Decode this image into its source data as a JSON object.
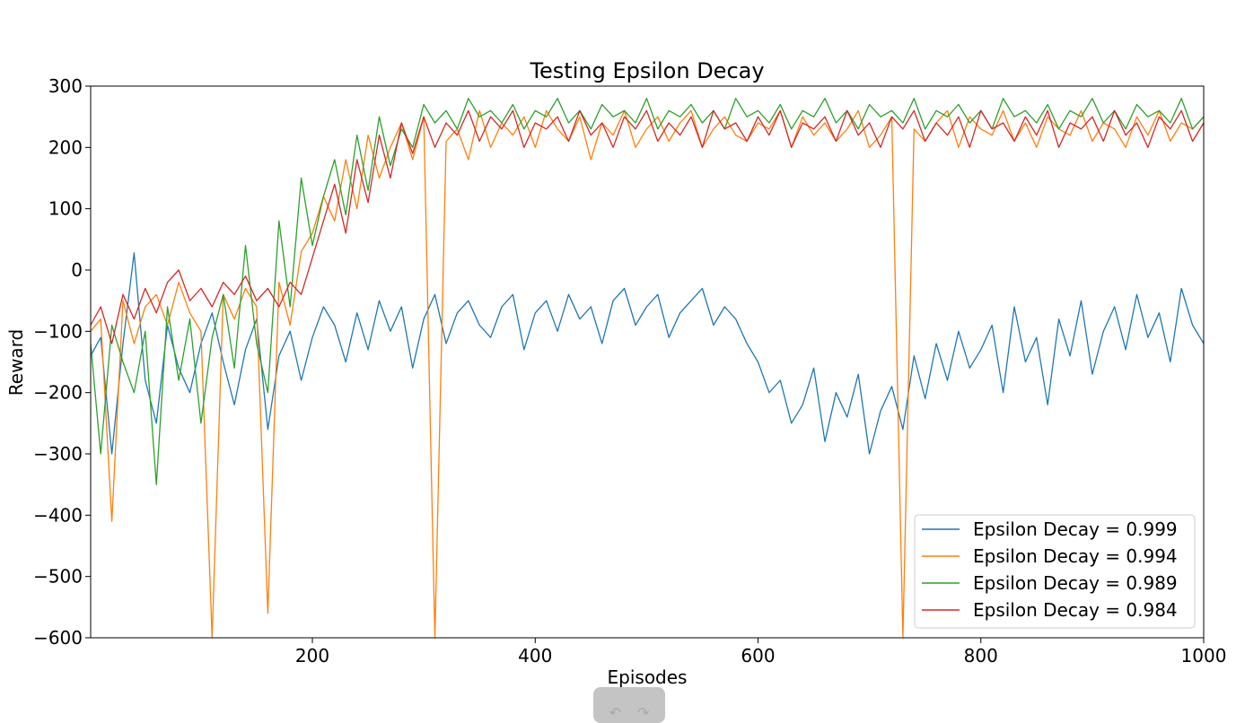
{
  "chart_data": {
    "type": "line",
    "title": "Testing Epsilon Decay",
    "xlabel": "Episodes",
    "ylabel": "Reward",
    "xlim": [
      1,
      1000
    ],
    "ylim": [
      -600,
      300
    ],
    "x_ticks": [
      200,
      400,
      600,
      800,
      1000
    ],
    "y_ticks": [
      300,
      200,
      100,
      0,
      -100,
      -200,
      -300,
      -400,
      -500,
      -600
    ],
    "y_tick_labels": [
      "300",
      "200",
      "100",
      "0",
      "−100",
      "−200",
      "−300",
      "−400",
      "−500",
      "−600"
    ],
    "grid": false,
    "legend_position": "bottom-right",
    "x": [
      1,
      10,
      20,
      30,
      40,
      50,
      60,
      70,
      80,
      90,
      100,
      110,
      120,
      130,
      140,
      150,
      160,
      170,
      180,
      190,
      200,
      210,
      220,
      230,
      240,
      250,
      260,
      270,
      280,
      290,
      300,
      310,
      320,
      330,
      340,
      350,
      360,
      370,
      380,
      390,
      400,
      410,
      420,
      430,
      440,
      450,
      460,
      470,
      480,
      490,
      500,
      510,
      520,
      530,
      540,
      550,
      560,
      570,
      580,
      590,
      600,
      610,
      620,
      630,
      640,
      650,
      660,
      670,
      680,
      690,
      700,
      710,
      720,
      730,
      740,
      750,
      760,
      770,
      780,
      790,
      800,
      810,
      820,
      830,
      840,
      850,
      860,
      870,
      880,
      890,
      900,
      910,
      920,
      930,
      940,
      950,
      960,
      970,
      980,
      990,
      1000
    ],
    "series": [
      {
        "name": "Epsilon Decay = 0.999",
        "color": "#1f77b4",
        "values": [
          -140,
          -110,
          -300,
          -120,
          28,
          -180,
          -250,
          -90,
          -160,
          -200,
          -120,
          -70,
          -150,
          -220,
          -130,
          -80,
          -260,
          -140,
          -100,
          -180,
          -110,
          -60,
          -90,
          -150,
          -70,
          -130,
          -50,
          -100,
          -60,
          -160,
          -80,
          -40,
          -120,
          -70,
          -50,
          -90,
          -110,
          -60,
          -40,
          -130,
          -70,
          -50,
          -100,
          -40,
          -80,
          -60,
          -120,
          -50,
          -30,
          -90,
          -60,
          -40,
          -110,
          -70,
          -50,
          -30,
          -90,
          -60,
          -80,
          -120,
          -150,
          -200,
          -180,
          -250,
          -220,
          -160,
          -280,
          -200,
          -240,
          -170,
          -300,
          -230,
          -190,
          -260,
          -140,
          -210,
          -120,
          -180,
          -100,
          -160,
          -130,
          -90,
          -200,
          -60,
          -150,
          -110,
          -220,
          -80,
          -140,
          -50,
          -170,
          -100,
          -60,
          -130,
          -40,
          -110,
          -70,
          -150,
          -30,
          -90,
          -120
        ]
      },
      {
        "name": "Epsilon Decay = 0.994",
        "color": "#ff7f0e",
        "values": [
          -100,
          -80,
          -410,
          -50,
          -120,
          -60,
          -40,
          -90,
          -20,
          -70,
          -100,
          -600,
          -40,
          -80,
          -30,
          -60,
          -560,
          -20,
          -90,
          30,
          60,
          120,
          80,
          180,
          100,
          220,
          150,
          200,
          240,
          180,
          250,
          -600,
          210,
          230,
          180,
          260,
          200,
          240,
          220,
          250,
          200,
          260,
          230,
          210,
          250,
          180,
          240,
          220,
          260,
          200,
          230,
          250,
          210,
          240,
          260,
          200,
          230,
          250,
          220,
          210,
          240,
          230,
          260,
          200,
          250,
          220,
          240,
          210,
          230,
          260,
          200,
          220,
          250,
          -600,
          230,
          210,
          240,
          260,
          200,
          250,
          230,
          220,
          260,
          210,
          240,
          200,
          250,
          230,
          220,
          260,
          210,
          240,
          230,
          200,
          250,
          220,
          260,
          210,
          240,
          230,
          250
        ]
      },
      {
        "name": "Epsilon Decay = 0.989",
        "color": "#2ca02c",
        "values": [
          -120,
          -300,
          -90,
          -150,
          -200,
          -100,
          -350,
          -60,
          -180,
          -80,
          -250,
          -110,
          -40,
          -160,
          40,
          -120,
          -200,
          80,
          -60,
          150,
          40,
          120,
          180,
          90,
          220,
          130,
          250,
          170,
          230,
          200,
          270,
          240,
          260,
          230,
          280,
          250,
          260,
          240,
          270,
          230,
          260,
          250,
          280,
          240,
          260,
          230,
          270,
          250,
          260,
          240,
          280,
          230,
          260,
          250,
          270,
          240,
          260,
          230,
          280,
          250,
          260,
          240,
          270,
          230,
          260,
          250,
          280,
          240,
          260,
          230,
          270,
          250,
          260,
          240,
          280,
          230,
          260,
          250,
          270,
          240,
          260,
          230,
          280,
          250,
          260,
          240,
          270,
          230,
          260,
          250,
          280,
          240,
          260,
          230,
          270,
          250,
          260,
          240,
          280,
          230,
          250
        ]
      },
      {
        "name": "Epsilon Decay = 0.984",
        "color": "#d62728",
        "values": [
          -90,
          -60,
          -120,
          -40,
          -80,
          -30,
          -70,
          -20,
          0,
          -50,
          -30,
          -60,
          -20,
          -40,
          -10,
          -50,
          -30,
          -60,
          -20,
          -40,
          20,
          80,
          140,
          60,
          180,
          110,
          220,
          150,
          240,
          190,
          250,
          200,
          240,
          220,
          260,
          210,
          250,
          230,
          260,
          200,
          240,
          230,
          250,
          210,
          260,
          220,
          240,
          200,
          250,
          230,
          260,
          210,
          240,
          220,
          250,
          200,
          260,
          230,
          240,
          210,
          250,
          220,
          260,
          200,
          240,
          230,
          250,
          210,
          260,
          220,
          240,
          200,
          250,
          230,
          260,
          210,
          240,
          220,
          250,
          200,
          260,
          230,
          240,
          210,
          250,
          220,
          260,
          200,
          240,
          230,
          250,
          210,
          260,
          220,
          240,
          200,
          250,
          230,
          260,
          210,
          240
        ]
      }
    ]
  },
  "toolbar": {
    "back_glyph": "↶",
    "forward_glyph": "↷"
  }
}
